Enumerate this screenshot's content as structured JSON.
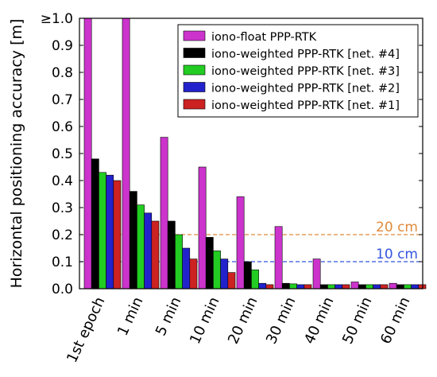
{
  "chart_data": {
    "type": "bar",
    "ylabel": "Horizontal positioning accuracy [m]",
    "ylim": [
      0,
      1.0
    ],
    "yticks": [
      0.0,
      0.1,
      0.2,
      0.3,
      0.4,
      0.5,
      0.6,
      0.7,
      0.8,
      0.9,
      1.0
    ],
    "ytick_labels": [
      "0.0",
      "0.1",
      "0.2",
      "0.3",
      "0.4",
      "0.5",
      "0.6",
      "0.7",
      "0.8",
      "0.9",
      "≥1.0"
    ],
    "categories": [
      "1st epoch",
      "1 min",
      "5 min",
      "10 min",
      "20 min",
      "30 min",
      "40 min",
      "50 min",
      "60 min"
    ],
    "grid": false,
    "legend_position": "top-right",
    "series": [
      {
        "name": "iono-float PPP-RTK",
        "color": "#cc33cc",
        "values": [
          1.0,
          1.0,
          0.56,
          0.45,
          0.34,
          0.23,
          0.11,
          0.025,
          0.02
        ]
      },
      {
        "name": "iono-weighted PPP-RTK [net. #4]",
        "color": "#000000",
        "values": [
          0.48,
          0.36,
          0.25,
          0.19,
          0.1,
          0.02,
          0.015,
          0.015,
          0.015
        ]
      },
      {
        "name": "iono-weighted PPP-RTK [net. #3]",
        "color": "#22cc22",
        "values": [
          0.43,
          0.31,
          0.2,
          0.14,
          0.07,
          0.018,
          0.015,
          0.015,
          0.015
        ]
      },
      {
        "name": "iono-weighted PPP-RTK [net. #2]",
        "color": "#2222cc",
        "values": [
          0.42,
          0.28,
          0.15,
          0.11,
          0.02,
          0.015,
          0.015,
          0.015,
          0.015
        ]
      },
      {
        "name": "iono-weighted PPP-RTK [net. #1]",
        "color": "#cc2222",
        "values": [
          0.4,
          0.25,
          0.11,
          0.06,
          0.015,
          0.015,
          0.015,
          0.015,
          0.015
        ]
      }
    ],
    "reference_lines": [
      {
        "value": 0.2,
        "label": "20 cm",
        "color": "#e08a3c"
      },
      {
        "value": 0.1,
        "label": "10 cm",
        "color": "#3355dd"
      }
    ]
  }
}
